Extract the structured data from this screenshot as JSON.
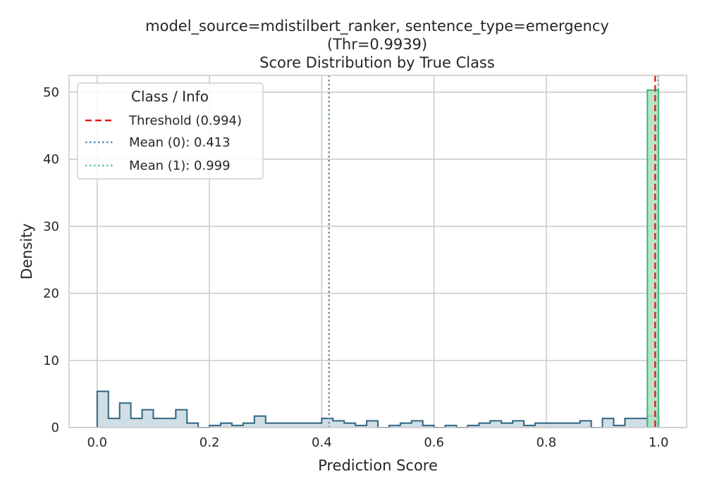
{
  "chart_data": {
    "type": "histogram",
    "title_lines": [
      "model_source=mdistilbert_ranker, sentence_type=emergency",
      "(Thr=0.9939)",
      "Score Distribution by True Class"
    ],
    "xlabel": "Prediction Score",
    "ylabel": "Density",
    "xlim": [
      -0.05,
      1.05
    ],
    "ylim": [
      0,
      52.5
    ],
    "xticks": [
      0.0,
      0.2,
      0.4,
      0.6,
      0.8,
      1.0
    ],
    "xtick_labels": [
      "0.0",
      "0.2",
      "0.4",
      "0.6",
      "0.8",
      "1.0"
    ],
    "yticks": [
      0,
      10,
      20,
      30,
      40,
      50
    ],
    "ytick_labels": [
      "0",
      "10",
      "20",
      "30",
      "40",
      "50"
    ],
    "grid": true,
    "bin_width": 0.02,
    "series": [
      {
        "name": "0",
        "color": "#2f6583",
        "fill": "#c8d8e0",
        "bins_start": 0.0,
        "densities": [
          5.4,
          1.35,
          3.65,
          1.35,
          2.65,
          1.35,
          1.35,
          2.65,
          0.65,
          0,
          0.3,
          0.65,
          0.3,
          0.65,
          1.7,
          0.65,
          0.65,
          0.65,
          0.65,
          0.65,
          1.35,
          1.0,
          0.65,
          0.3,
          1.0,
          0,
          0.3,
          0.65,
          1.0,
          0.3,
          0,
          0.3,
          0,
          0.3,
          0.65,
          1.0,
          0.65,
          1.0,
          0.3,
          0.65,
          0.65,
          0.65,
          0.65,
          1.0,
          0,
          1.35,
          0.3,
          1.35,
          1.35,
          1.7
        ]
      },
      {
        "name": "1",
        "color": "#3db87a",
        "fill": "#a8e2c2",
        "bins_start": 0.98,
        "densities": [
          50.3
        ]
      }
    ],
    "vlines": [
      {
        "name": "Threshold (0.994)",
        "x": 0.9939,
        "color": "#e31a1c",
        "style": "dashed"
      },
      {
        "name": "Mean (0): 0.413",
        "x": 0.413,
        "color": "#5b8db0",
        "style": "dotted"
      },
      {
        "name": "Mean (1): 0.999",
        "x": 0.999,
        "color": "#66c2a0",
        "style": "dotted"
      }
    ],
    "legend": {
      "title": "Class / Info",
      "placement": "top-left",
      "entries": [
        "Threshold (0.994)",
        "Mean (0): 0.413",
        "Mean (1): 0.999"
      ]
    }
  }
}
